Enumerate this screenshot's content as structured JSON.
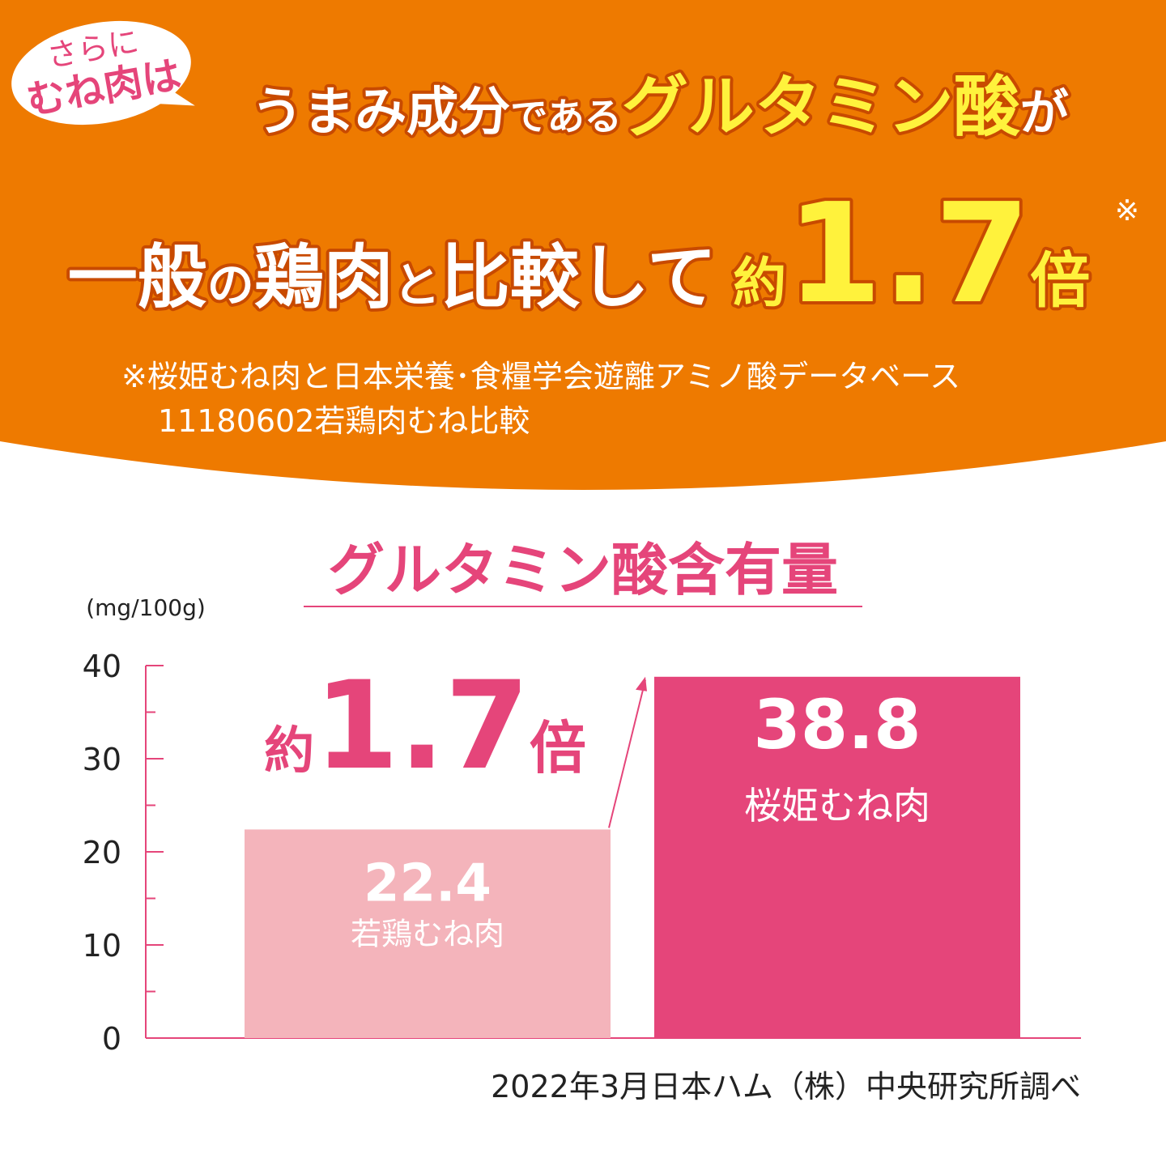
{
  "header": {
    "bubble": [
      "さらに",
      "むね肉は"
    ],
    "line1": [
      "うまみ成分",
      "である",
      "グルタミン酸",
      "が"
    ],
    "line2": [
      "一般",
      "の",
      "鶏肉",
      "と",
      "比較して",
      "約",
      "1.7",
      "倍"
    ],
    "note_mark": "※",
    "footnote": [
      "※桜姫むね肉と日本栄養･食糧学会遊離アミノ酸データベース",
      "11180602若鶏肉むね比較"
    ]
  },
  "chart_data": {
    "type": "bar",
    "title": "グルタミン酸含有量",
    "y_label": "(mg/100g)",
    "categories": [
      "若鶏むね肉",
      "桜姫むね肉"
    ],
    "values": [
      22.4,
      38.8
    ],
    "colors": [
      "#f4b4bb",
      "#e5457a"
    ],
    "ylim": [
      0,
      40
    ],
    "yticks": [
      0,
      10,
      20,
      30,
      40
    ],
    "minor_yticks": [
      5,
      15,
      25,
      35
    ],
    "annotation": [
      "約",
      "1.7",
      "倍"
    ],
    "source": "2022年3月日本ハム（株）中央研究所調べ"
  }
}
